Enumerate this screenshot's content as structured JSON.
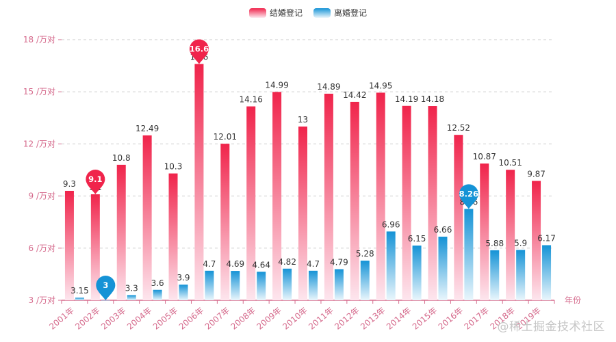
{
  "chart_data": {
    "type": "bar",
    "categories": [
      "2001年",
      "2002年",
      "2003年",
      "2004年",
      "2005年",
      "2006年",
      "2007年",
      "2008年",
      "2009年",
      "2010年",
      "2011年",
      "2012年",
      "2013年",
      "2014年",
      "2015年",
      "2016年",
      "2017年",
      "2018年",
      "2019年"
    ],
    "series": [
      {
        "name": "结婚登记",
        "color_top": "#f0244b",
        "color_bottom": "#fde6ee",
        "values": [
          9.3,
          9.1,
          10.8,
          12.49,
          10.3,
          16.6,
          12.01,
          14.16,
          14.99,
          13,
          14.89,
          14.42,
          14.95,
          14.19,
          14.18,
          12.52,
          10.87,
          10.51,
          9.87
        ],
        "max_marker": {
          "index": 5,
          "label": "16.6"
        },
        "min_marker": {
          "index": 1,
          "label": "9.1"
        }
      },
      {
        "name": "离婚登记",
        "color_top": "#1593d6",
        "color_bottom": "#eaf6fc",
        "values": [
          3.15,
          3,
          3.3,
          3.6,
          3.9,
          4.7,
          4.69,
          4.64,
          4.82,
          4.7,
          4.79,
          5.28,
          6.96,
          6.15,
          6.66,
          8.26,
          5.88,
          5.9,
          6.17
        ],
        "max_marker": {
          "index": 15,
          "label": "8.26"
        },
        "min_marker": {
          "index": 1,
          "label": "3"
        }
      }
    ],
    "y_ticks": [
      3,
      6,
      9,
      12,
      15,
      18
    ],
    "y_tick_suffix": " /万对",
    "ylim": [
      3,
      18
    ],
    "xlabel": "年份",
    "ylabel": "",
    "legend_position": "top-center",
    "grid": true,
    "axis_color": "#d56a8c",
    "label_color": "#333333"
  },
  "watermark": "@稀土掘金技术社区"
}
